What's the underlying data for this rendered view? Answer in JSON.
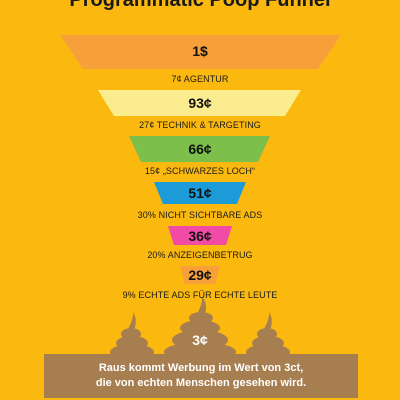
{
  "title": "Programmatic Poop Funnel",
  "funnel": [
    {
      "value": "1$",
      "caption": "7¢ AGENTUR",
      "color": "#F7A03A"
    },
    {
      "value": "93¢",
      "caption": "27¢ TECHNIK & TARGETING",
      "color": "#FBEC8F"
    },
    {
      "value": "66¢",
      "caption": "15¢ „SCHWARZES LOCH“",
      "color": "#7CBF4B"
    },
    {
      "value": "51¢",
      "caption": "30% NICHT SICHTBARE ADS",
      "color": "#1B9BD8"
    },
    {
      "value": "36¢",
      "caption": "20% ANZEIGENBETRUG",
      "color": "#F24BA6"
    },
    {
      "value": "29¢",
      "caption": "9% ECHTE ADS FÜR ECHTE LEUTE",
      "color": "#F7A03A"
    }
  ],
  "poop": {
    "value": "3¢",
    "color": "#A77E4F"
  },
  "banner": {
    "line1": "Raus kommt Werbung im Wert von 3ct,",
    "line2": "die von echten Menschen gesehen wird.",
    "color": "#A77E4F"
  }
}
